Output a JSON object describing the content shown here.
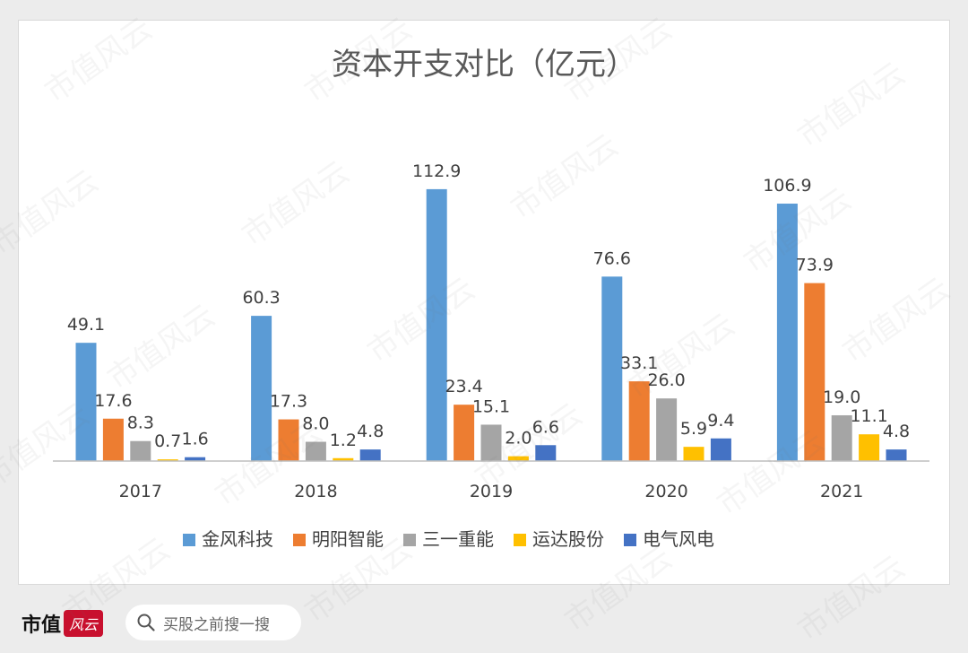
{
  "chart_data": {
    "type": "bar",
    "title": "资本开支对比（亿元）",
    "categories": [
      "2017",
      "2018",
      "2019",
      "2020",
      "2021"
    ],
    "series": [
      {
        "name": "金风科技",
        "color": "#5b9bd5",
        "values": [
          49.1,
          60.3,
          112.9,
          76.6,
          106.9
        ],
        "labels": [
          "49.1",
          "60.3",
          "112.9",
          "76.6",
          "106.9"
        ]
      },
      {
        "name": "明阳智能",
        "color": "#ed7d31",
        "values": [
          17.6,
          17.3,
          23.4,
          33.1,
          73.9
        ],
        "labels": [
          "17.6",
          "17.3",
          "23.4",
          "33.1",
          "73.9"
        ]
      },
      {
        "name": "三一重能",
        "color": "#a5a5a5",
        "values": [
          8.3,
          8.0,
          15.1,
          26.0,
          19.0
        ],
        "labels": [
          "8.3",
          "8.0",
          "15.1",
          "26.0",
          "19.0"
        ]
      },
      {
        "name": "运达股份",
        "color": "#ffc000",
        "values": [
          0.7,
          1.2,
          2.0,
          5.9,
          11.1
        ],
        "labels": [
          "0.7",
          "1.2",
          "2.0",
          "5.9",
          "11.1"
        ]
      },
      {
        "name": "电气风电",
        "color": "#4472c4",
        "values": [
          1.6,
          4.8,
          6.6,
          9.4,
          4.8
        ],
        "labels": [
          "1.6",
          "4.8",
          "6.6",
          "9.4",
          "4.8"
        ]
      }
    ],
    "ylim": [
      0,
      130
    ],
    "grid": false,
    "legend": "bottom"
  },
  "watermark": "市值风云",
  "footer": {
    "brand": "市值",
    "brand_logo": "风云",
    "search_placeholder": "买股之前搜一搜"
  }
}
